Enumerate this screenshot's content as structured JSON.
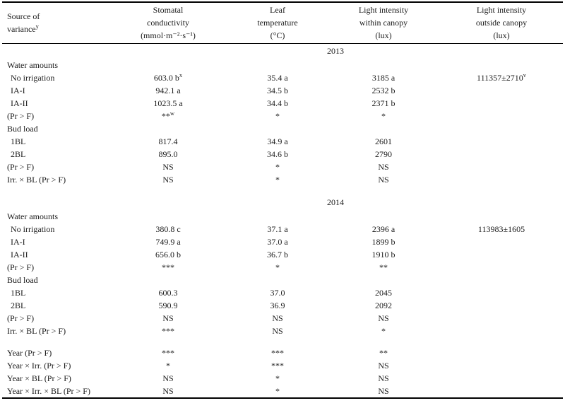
{
  "page": {
    "background": "#ffffff",
    "text_color": "#1b1b1b",
    "rule_color": "#000000"
  },
  "table": {
    "header": {
      "source": {
        "line1": "Source of",
        "line2": "variance",
        "sup": "y"
      },
      "columns": [
        {
          "line1": "Stomatal",
          "line2": "conductivity",
          "line3": "(mmol·m⁻²·s⁻¹)"
        },
        {
          "line1": "Leaf",
          "line2": "temperature",
          "line3": "(°C)"
        },
        {
          "line1": "Light intensity",
          "line2": "within canopy",
          "line3": "(lux)"
        },
        {
          "line1": "Light intensity",
          "line2": "outside canopy",
          "line3": "(lux)"
        }
      ]
    },
    "rows": [
      {
        "kind": "year",
        "label": "2013"
      },
      {
        "kind": "section",
        "label": "Water amounts"
      },
      {
        "kind": "data",
        "label": "No irrigation",
        "indent": true,
        "cells": [
          {
            "t": "603.0 b",
            "s": "x"
          },
          {
            "t": "35.4 a"
          },
          {
            "t": "3185 a"
          },
          {
            "t": "111357±2710",
            "s": "v"
          }
        ]
      },
      {
        "kind": "data",
        "label": "IA-I",
        "indent": true,
        "cells": [
          {
            "t": "942.1 a"
          },
          {
            "t": "34.5 b"
          },
          {
            "t": "2532 b"
          },
          {
            "t": ""
          }
        ]
      },
      {
        "kind": "data",
        "label": "IA-II",
        "indent": true,
        "cells": [
          {
            "t": "1023.5 a"
          },
          {
            "t": "34.4 b"
          },
          {
            "t": "2371 b"
          },
          {
            "t": ""
          }
        ]
      },
      {
        "kind": "data",
        "label": "(Pr > F)",
        "cells": [
          {
            "t": "**",
            "s": "w"
          },
          {
            "t": "*"
          },
          {
            "t": "*"
          },
          {
            "t": ""
          }
        ]
      },
      {
        "kind": "section",
        "label": "Bud load"
      },
      {
        "kind": "data",
        "label": "1BL",
        "indent": true,
        "cells": [
          {
            "t": "817.4"
          },
          {
            "t": "34.9 a"
          },
          {
            "t": "2601"
          },
          {
            "t": ""
          }
        ]
      },
      {
        "kind": "data",
        "label": "2BL",
        "indent": true,
        "cells": [
          {
            "t": "895.0"
          },
          {
            "t": "34.6 b"
          },
          {
            "t": "2790"
          },
          {
            "t": ""
          }
        ]
      },
      {
        "kind": "data",
        "label": "(Pr > F)",
        "cells": [
          {
            "t": "NS"
          },
          {
            "t": "*"
          },
          {
            "t": "NS"
          },
          {
            "t": ""
          }
        ]
      },
      {
        "kind": "data",
        "label": "Irr. × BL (Pr > F)",
        "cells": [
          {
            "t": "NS"
          },
          {
            "t": "*"
          },
          {
            "t": "NS"
          },
          {
            "t": ""
          }
        ]
      },
      {
        "kind": "spacer"
      },
      {
        "kind": "year",
        "label": "2014"
      },
      {
        "kind": "section",
        "label": "Water amounts"
      },
      {
        "kind": "data",
        "label": "No irrigation",
        "indent": true,
        "cells": [
          {
            "t": "380.8 c"
          },
          {
            "t": "37.1 a"
          },
          {
            "t": "2396 a"
          },
          {
            "t": "113983±1605"
          }
        ]
      },
      {
        "kind": "data",
        "label": "IA-I",
        "indent": true,
        "cells": [
          {
            "t": "749.9 a"
          },
          {
            "t": "37.0 a"
          },
          {
            "t": "1899 b"
          },
          {
            "t": ""
          }
        ]
      },
      {
        "kind": "data",
        "label": "IA-II",
        "indent": true,
        "cells": [
          {
            "t": "656.0 b"
          },
          {
            "t": "36.7 b"
          },
          {
            "t": "1910 b"
          },
          {
            "t": ""
          }
        ]
      },
      {
        "kind": "data",
        "label": "(Pr > F)",
        "cells": [
          {
            "t": "***"
          },
          {
            "t": "*"
          },
          {
            "t": "**"
          },
          {
            "t": ""
          }
        ]
      },
      {
        "kind": "section",
        "label": "Bud load"
      },
      {
        "kind": "data",
        "label": "1BL",
        "indent": true,
        "cells": [
          {
            "t": "600.3"
          },
          {
            "t": "37.0"
          },
          {
            "t": "2045"
          },
          {
            "t": ""
          }
        ]
      },
      {
        "kind": "data",
        "label": "2BL",
        "indent": true,
        "cells": [
          {
            "t": "590.9"
          },
          {
            "t": "36.9"
          },
          {
            "t": "2092"
          },
          {
            "t": ""
          }
        ]
      },
      {
        "kind": "data",
        "label": "(Pr > F)",
        "cells": [
          {
            "t": "NS"
          },
          {
            "t": "NS"
          },
          {
            "t": "NS"
          },
          {
            "t": ""
          }
        ]
      },
      {
        "kind": "data",
        "label": "Irr. × BL (Pr > F)",
        "cells": [
          {
            "t": "***"
          },
          {
            "t": "NS"
          },
          {
            "t": "*"
          },
          {
            "t": ""
          }
        ]
      },
      {
        "kind": "spacer"
      },
      {
        "kind": "data",
        "label": "Year (Pr > F)",
        "cells": [
          {
            "t": "***"
          },
          {
            "t": "***"
          },
          {
            "t": "**"
          },
          {
            "t": ""
          }
        ]
      },
      {
        "kind": "data",
        "label": "Year × Irr. (Pr > F)",
        "cells": [
          {
            "t": "*"
          },
          {
            "t": "***"
          },
          {
            "t": "NS"
          },
          {
            "t": ""
          }
        ]
      },
      {
        "kind": "data",
        "label": "Year × BL (Pr > F)",
        "cells": [
          {
            "t": "NS"
          },
          {
            "t": "*"
          },
          {
            "t": "NS"
          },
          {
            "t": ""
          }
        ]
      },
      {
        "kind": "data",
        "label": "Year × Irr. × BL (Pr > F)",
        "cells": [
          {
            "t": "NS"
          },
          {
            "t": "*"
          },
          {
            "t": "NS"
          },
          {
            "t": ""
          }
        ]
      }
    ]
  }
}
